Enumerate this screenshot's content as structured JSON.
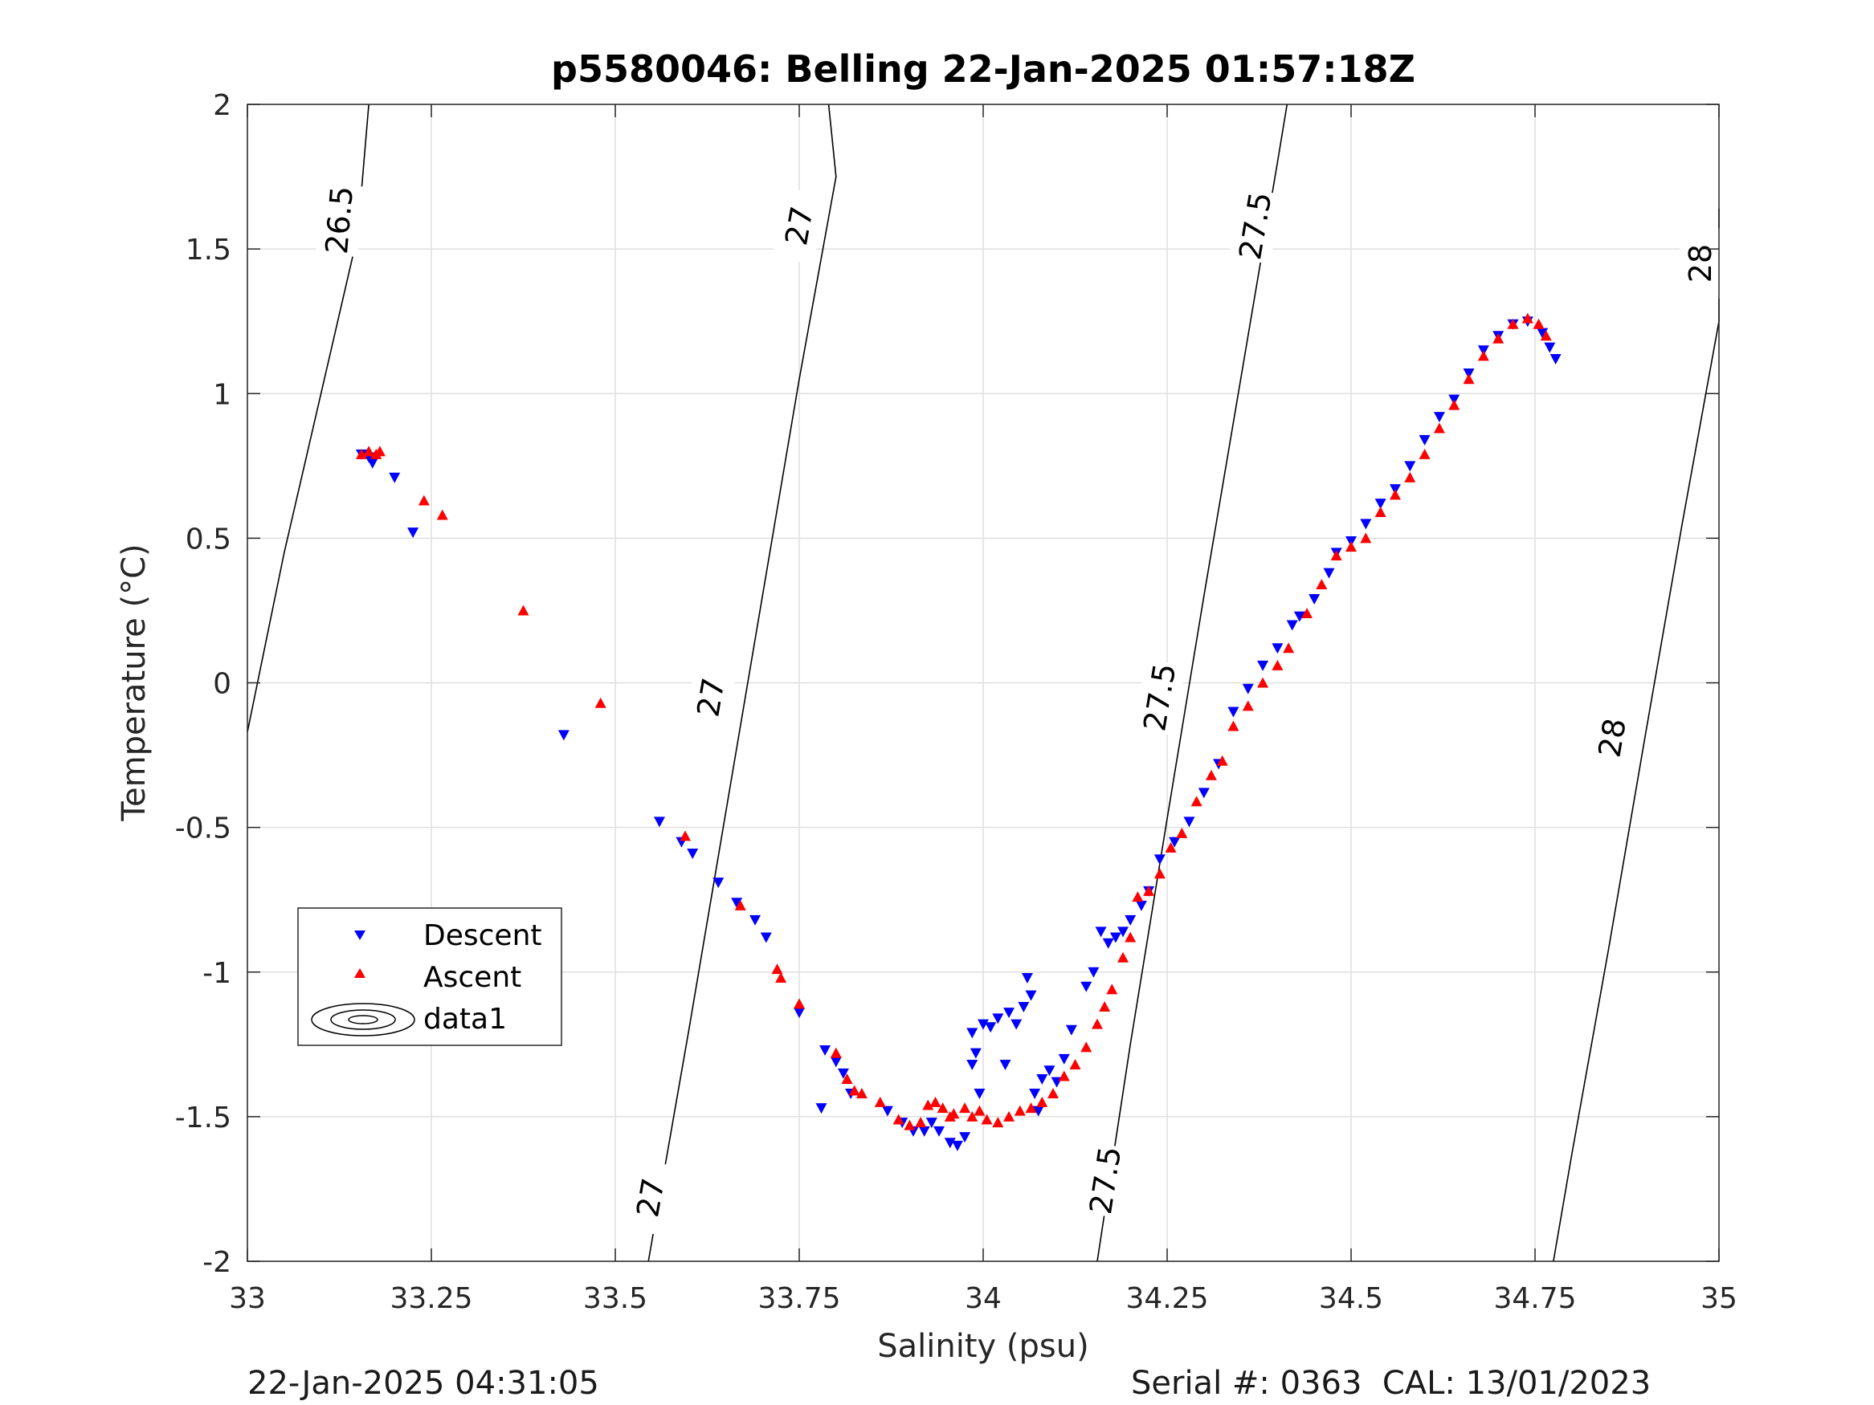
{
  "chart_data": {
    "type": "scatter",
    "title": "p5580046: Belling 22-Jan-2025 01:57:18Z",
    "xlabel": "Salinity (psu)",
    "ylabel": "Temperature (°C)",
    "xlim": [
      33,
      35
    ],
    "ylim": [
      -2,
      2
    ],
    "xticks": [
      33,
      33.25,
      33.5,
      33.75,
      34,
      34.25,
      34.5,
      34.75,
      35
    ],
    "xtick_labels": [
      "33",
      "33.25",
      "33.5",
      "33.75",
      "34",
      "34.25",
      "34.5",
      "34.75",
      "35"
    ],
    "yticks": [
      -2,
      -1.5,
      -1,
      -0.5,
      0,
      0.5,
      1,
      1.5,
      2
    ],
    "ytick_labels": [
      "-2",
      "-1.5",
      "-1",
      "-0.5",
      "0",
      "0.5",
      "1",
      "1.5",
      "2"
    ],
    "grid": true,
    "legend_position": "lower-left",
    "contours": [
      {
        "level": "26.5",
        "points": [
          [
            33.0,
            -0.17
          ],
          [
            33.05,
            0.45
          ],
          [
            33.1,
            1.0
          ],
          [
            33.15,
            1.55
          ],
          [
            33.165,
            2.0
          ]
        ],
        "labels": [
          {
            "x": 33.125,
            "y": 1.6
          }
        ]
      },
      {
        "level": "27",
        "points": [
          [
            33.545,
            -2.0
          ],
          [
            33.6,
            -1.2
          ],
          [
            33.65,
            -0.45
          ],
          [
            33.7,
            0.3
          ],
          [
            33.75,
            1.05
          ],
          [
            33.8,
            1.75
          ],
          [
            33.79,
            2.0
          ]
        ],
        "labels": [
          {
            "x": 33.63,
            "y": -0.05
          },
          {
            "x": 33.75,
            "y": 1.58
          },
          {
            "x": 33.548,
            "y": -1.78
          }
        ]
      },
      {
        "level": "27.5",
        "points": [
          [
            34.155,
            -2.0
          ],
          [
            34.2,
            -1.25
          ],
          [
            34.25,
            -0.47
          ],
          [
            34.3,
            0.3
          ],
          [
            34.35,
            1.05
          ],
          [
            34.4,
            1.8
          ],
          [
            34.413,
            2.0
          ]
        ],
        "labels": [
          {
            "x": 34.24,
            "y": -0.05
          },
          {
            "x": 34.37,
            "y": 1.58
          },
          {
            "x": 34.166,
            "y": -1.72
          }
        ]
      },
      {
        "level": "28",
        "points": [
          [
            34.775,
            -2.0
          ],
          [
            34.8,
            -1.63
          ],
          [
            34.85,
            -0.92
          ],
          [
            34.9,
            -0.18
          ],
          [
            34.95,
            0.55
          ],
          [
            35.0,
            1.25
          ],
          [
            35.0,
            1.64
          ]
        ],
        "labels": [
          {
            "x": 34.855,
            "y": -0.19
          },
          {
            "x": 34.975,
            "y": 1.45
          }
        ]
      }
    ],
    "series": [
      {
        "name": "Descent",
        "marker": "triangle-down",
        "color": "#0000ff",
        "points": [
          [
            33.155,
            0.79
          ],
          [
            33.165,
            0.78
          ],
          [
            33.17,
            0.76
          ],
          [
            33.2,
            0.71
          ],
          [
            33.225,
            0.52
          ],
          [
            33.43,
            -0.18
          ],
          [
            33.56,
            -0.48
          ],
          [
            33.59,
            -0.55
          ],
          [
            33.605,
            -0.59
          ],
          [
            33.64,
            -0.69
          ],
          [
            33.665,
            -0.76
          ],
          [
            33.69,
            -0.82
          ],
          [
            33.705,
            -0.88
          ],
          [
            33.75,
            -1.14
          ],
          [
            33.785,
            -1.27
          ],
          [
            33.78,
            -1.47
          ],
          [
            33.8,
            -1.31
          ],
          [
            33.81,
            -1.35
          ],
          [
            33.82,
            -1.42
          ],
          [
            33.87,
            -1.48
          ],
          [
            33.89,
            -1.52
          ],
          [
            33.905,
            -1.55
          ],
          [
            33.92,
            -1.55
          ],
          [
            33.93,
            -1.52
          ],
          [
            33.94,
            -1.55
          ],
          [
            33.955,
            -1.59
          ],
          [
            33.965,
            -1.6
          ],
          [
            33.975,
            -1.57
          ],
          [
            33.985,
            -1.21
          ],
          [
            33.985,
            -1.32
          ],
          [
            33.99,
            -1.28
          ],
          [
            33.995,
            -1.42
          ],
          [
            34.0,
            -1.18
          ],
          [
            34.01,
            -1.19
          ],
          [
            34.02,
            -1.16
          ],
          [
            34.03,
            -1.32
          ],
          [
            34.035,
            -1.14
          ],
          [
            34.045,
            -1.18
          ],
          [
            34.055,
            -1.12
          ],
          [
            34.06,
            -1.02
          ],
          [
            34.065,
            -1.08
          ],
          [
            34.07,
            -1.42
          ],
          [
            34.075,
            -1.48
          ],
          [
            34.08,
            -1.37
          ],
          [
            34.09,
            -1.34
          ],
          [
            34.1,
            -1.38
          ],
          [
            34.11,
            -1.3
          ],
          [
            34.12,
            -1.2
          ],
          [
            34.14,
            -1.05
          ],
          [
            34.15,
            -1.0
          ],
          [
            34.16,
            -0.86
          ],
          [
            34.17,
            -0.9
          ],
          [
            34.18,
            -0.88
          ],
          [
            34.19,
            -0.86
          ],
          [
            34.2,
            -0.82
          ],
          [
            34.215,
            -0.77
          ],
          [
            34.225,
            -0.72
          ],
          [
            34.24,
            -0.61
          ],
          [
            34.26,
            -0.55
          ],
          [
            34.28,
            -0.48
          ],
          [
            34.3,
            -0.38
          ],
          [
            34.32,
            -0.28
          ],
          [
            34.34,
            -0.1
          ],
          [
            34.36,
            -0.02
          ],
          [
            34.38,
            0.06
          ],
          [
            34.4,
            0.12
          ],
          [
            34.42,
            0.2
          ],
          [
            34.43,
            0.23
          ],
          [
            34.45,
            0.29
          ],
          [
            34.47,
            0.38
          ],
          [
            34.48,
            0.45
          ],
          [
            34.5,
            0.49
          ],
          [
            34.52,
            0.55
          ],
          [
            34.54,
            0.62
          ],
          [
            34.56,
            0.67
          ],
          [
            34.58,
            0.75
          ],
          [
            34.6,
            0.84
          ],
          [
            34.62,
            0.92
          ],
          [
            34.64,
            0.98
          ],
          [
            34.66,
            1.07
          ],
          [
            34.68,
            1.15
          ],
          [
            34.7,
            1.2
          ],
          [
            34.72,
            1.24
          ],
          [
            34.74,
            1.25
          ],
          [
            34.76,
            1.21
          ],
          [
            34.77,
            1.16
          ],
          [
            34.778,
            1.12
          ]
        ]
      },
      {
        "name": "Ascent",
        "marker": "triangle-up",
        "color": "#ff0000",
        "points": [
          [
            33.155,
            0.79
          ],
          [
            33.165,
            0.8
          ],
          [
            33.175,
            0.79
          ],
          [
            33.18,
            0.8
          ],
          [
            33.24,
            0.63
          ],
          [
            33.265,
            0.58
          ],
          [
            33.375,
            0.25
          ],
          [
            33.48,
            -0.07
          ],
          [
            33.595,
            -0.53
          ],
          [
            33.67,
            -0.77
          ],
          [
            33.72,
            -0.99
          ],
          [
            33.725,
            -1.02
          ],
          [
            33.75,
            -1.11
          ],
          [
            33.8,
            -1.28
          ],
          [
            33.815,
            -1.37
          ],
          [
            33.825,
            -1.41
          ],
          [
            33.835,
            -1.42
          ],
          [
            33.86,
            -1.45
          ],
          [
            33.885,
            -1.51
          ],
          [
            33.9,
            -1.53
          ],
          [
            33.915,
            -1.52
          ],
          [
            33.925,
            -1.46
          ],
          [
            33.935,
            -1.45
          ],
          [
            33.945,
            -1.47
          ],
          [
            33.955,
            -1.5
          ],
          [
            33.96,
            -1.49
          ],
          [
            33.975,
            -1.47
          ],
          [
            33.985,
            -1.5
          ],
          [
            33.995,
            -1.48
          ],
          [
            34.005,
            -1.51
          ],
          [
            34.02,
            -1.52
          ],
          [
            34.035,
            -1.5
          ],
          [
            34.05,
            -1.48
          ],
          [
            34.065,
            -1.47
          ],
          [
            34.08,
            -1.45
          ],
          [
            34.095,
            -1.42
          ],
          [
            34.11,
            -1.36
          ],
          [
            34.125,
            -1.32
          ],
          [
            34.14,
            -1.26
          ],
          [
            34.155,
            -1.18
          ],
          [
            34.165,
            -1.12
          ],
          [
            34.175,
            -1.06
          ],
          [
            34.19,
            -0.95
          ],
          [
            34.2,
            -0.88
          ],
          [
            34.21,
            -0.74
          ],
          [
            34.225,
            -0.72
          ],
          [
            34.24,
            -0.66
          ],
          [
            34.255,
            -0.57
          ],
          [
            34.27,
            -0.52
          ],
          [
            34.29,
            -0.41
          ],
          [
            34.31,
            -0.32
          ],
          [
            34.325,
            -0.27
          ],
          [
            34.34,
            -0.15
          ],
          [
            34.36,
            -0.08
          ],
          [
            34.38,
            0.0
          ],
          [
            34.4,
            0.06
          ],
          [
            34.415,
            0.12
          ],
          [
            34.44,
            0.24
          ],
          [
            34.46,
            0.34
          ],
          [
            34.48,
            0.44
          ],
          [
            34.5,
            0.47
          ],
          [
            34.52,
            0.5
          ],
          [
            34.54,
            0.59
          ],
          [
            34.56,
            0.65
          ],
          [
            34.58,
            0.71
          ],
          [
            34.6,
            0.79
          ],
          [
            34.62,
            0.88
          ],
          [
            34.64,
            0.96
          ],
          [
            34.66,
            1.05
          ],
          [
            34.68,
            1.13
          ],
          [
            34.7,
            1.19
          ],
          [
            34.72,
            1.24
          ],
          [
            34.74,
            1.26
          ],
          [
            34.755,
            1.24
          ],
          [
            34.765,
            1.2
          ]
        ]
      }
    ]
  },
  "legend": {
    "descent": "Descent",
    "ascent": "Ascent",
    "contour": "data1"
  },
  "footer": {
    "left": "22-Jan-2025 04:31:05",
    "right": "Serial #: 0363  CAL: 13/01/2023"
  }
}
